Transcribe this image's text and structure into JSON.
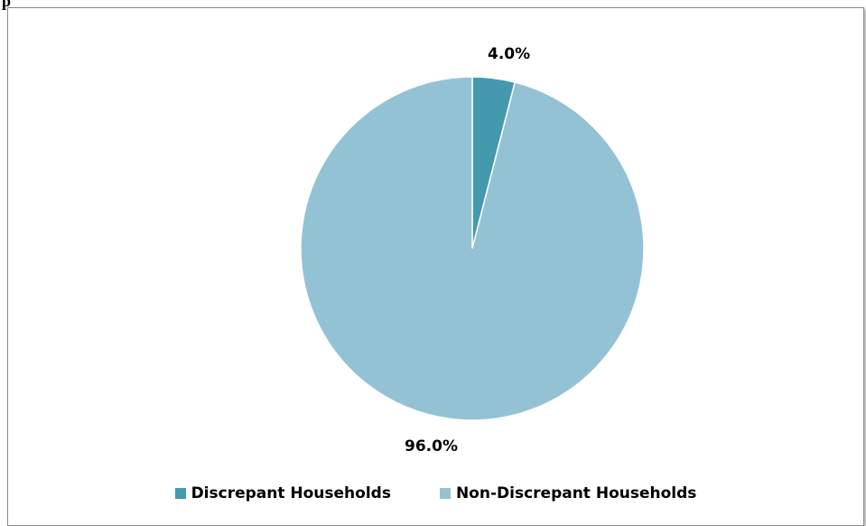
{
  "header_fragment": "p",
  "colors": {
    "discrepant": "#4499AE",
    "non_discrepant": "#93C2D5",
    "slice_border": "#ffffff"
  },
  "chart_data": {
    "type": "pie",
    "categories": [
      "Discrepant Households",
      "Non-Discrepant Households"
    ],
    "values": [
      4.0,
      96.0
    ],
    "data_labels": [
      "4.0%",
      "96.0%"
    ],
    "legend_position": "bottom"
  }
}
